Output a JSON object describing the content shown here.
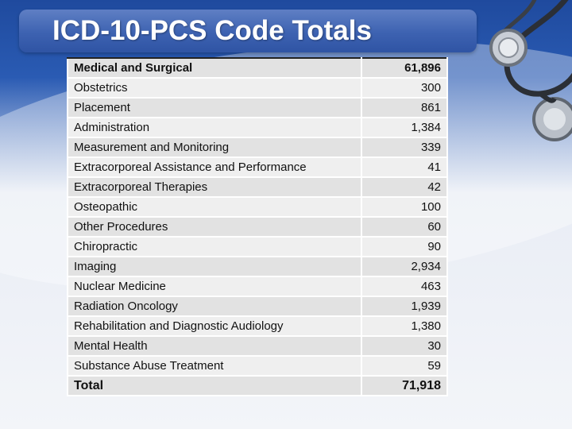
{
  "slide": {
    "title": "ICD-10-PCS Code Totals"
  },
  "rows": [
    {
      "label": "Medical and Surgical",
      "value": "61,896"
    },
    {
      "label": "Obstetrics",
      "value": "300"
    },
    {
      "label": "Placement",
      "value": "861"
    },
    {
      "label": "Administration",
      "value": "1,384"
    },
    {
      "label": "Measurement and Monitoring",
      "value": "339"
    },
    {
      "label": "Extracorporeal Assistance and Performance",
      "value": "41"
    },
    {
      "label": "Extracorporeal Therapies",
      "value": "42"
    },
    {
      "label": "Osteopathic",
      "value": "100"
    },
    {
      "label": "Other Procedures",
      "value": "60"
    },
    {
      "label": "Chiropractic",
      "value": "90"
    },
    {
      "label": "Imaging",
      "value": "2,934"
    },
    {
      "label": "Nuclear Medicine",
      "value": "463"
    },
    {
      "label": "Radiation Oncology",
      "value": "1,939"
    },
    {
      "label": "Rehabilitation and Diagnostic Audiology",
      "value": "1,380"
    },
    {
      "label": "Mental Health",
      "value": "30"
    },
    {
      "label": "Substance Abuse Treatment",
      "value": "59"
    }
  ],
  "total": {
    "label": "Total",
    "value": "71,918"
  },
  "decor": {
    "icon": "stethoscope-icon",
    "accent": "#2f54a4"
  }
}
